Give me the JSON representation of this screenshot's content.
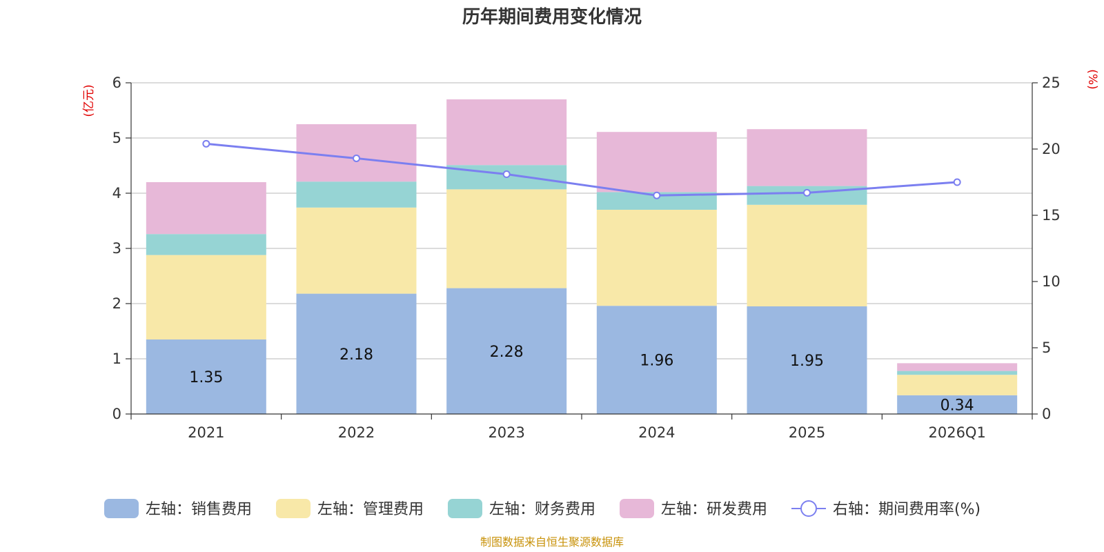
{
  "chart_data": {
    "type": "bar",
    "title": "历年期间费用变化情况",
    "categories": [
      "2021",
      "2022",
      "2023",
      "2024",
      "2025",
      "2026Q1"
    ],
    "left_axis": {
      "unit": "(亿元)",
      "ylim": [
        0,
        6
      ],
      "ticks": [
        "0",
        "1",
        "2",
        "3",
        "4",
        "5",
        "6"
      ]
    },
    "right_axis": {
      "unit": "(%)",
      "ylim": [
        0,
        25
      ],
      "ticks": [
        "0",
        "5",
        "10",
        "15",
        "20",
        "25"
      ]
    },
    "series": [
      {
        "name": "左轴：销售费用",
        "type": "bar",
        "axis": "left",
        "color": "#9bb8e1",
        "values": [
          1.35,
          2.18,
          2.28,
          1.96,
          1.95,
          0.34
        ],
        "labels": [
          "1.35",
          "2.18",
          "2.28",
          "1.96",
          "1.95",
          "0.34"
        ]
      },
      {
        "name": "左轴：管理费用",
        "type": "bar",
        "axis": "left",
        "color": "#f8e8a8",
        "values": [
          1.53,
          1.56,
          1.79,
          1.74,
          1.84,
          0.37
        ]
      },
      {
        "name": "左轴：财务费用",
        "type": "bar",
        "axis": "left",
        "color": "#96d4d4",
        "values": [
          0.38,
          0.47,
          0.44,
          0.32,
          0.34,
          0.07
        ]
      },
      {
        "name": "左轴：研发费用",
        "type": "bar",
        "axis": "left",
        "color": "#e7b8d8",
        "values": [
          0.94,
          1.04,
          1.19,
          1.09,
          1.03,
          0.14
        ]
      },
      {
        "name": "右轴：期间费用率(%)",
        "type": "line",
        "axis": "right",
        "color": "#7b7ff0",
        "values": [
          20.4,
          19.3,
          18.1,
          16.5,
          16.7,
          17.5
        ]
      }
    ],
    "grid": true,
    "legend_position": "bottom"
  },
  "source_note": "制图数据来自恒生聚源数据库"
}
